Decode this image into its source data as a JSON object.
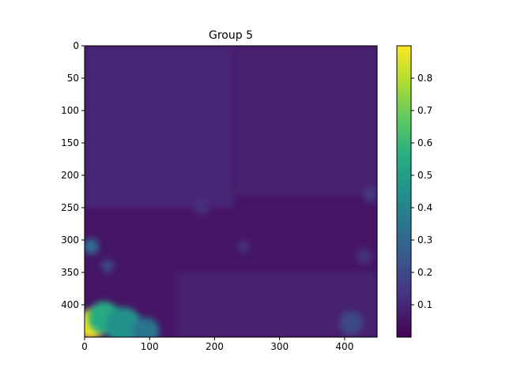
{
  "chart_data": {
    "type": "heatmap",
    "title": "Group 5",
    "xlabel": "",
    "ylabel": "",
    "xlim": [
      0,
      450
    ],
    "ylim": [
      450,
      0
    ],
    "x_ticks": [
      0,
      100,
      200,
      300,
      400
    ],
    "y_ticks": [
      0,
      50,
      100,
      150,
      200,
      250,
      300,
      350,
      400
    ],
    "colorbar": {
      "range": [
        0.0,
        0.9
      ],
      "ticks": [
        0.1,
        0.2,
        0.3,
        0.4,
        0.5,
        0.6,
        0.7,
        0.8
      ],
      "colormap": "viridis"
    },
    "base_level": 0.05,
    "regions": [
      {
        "name": "upper-left",
        "x": [
          0,
          230
        ],
        "y": [
          0,
          250
        ],
        "value": 0.1
      },
      {
        "name": "upper-right",
        "x": [
          230,
          450
        ],
        "y": [
          0,
          230
        ],
        "value": 0.08
      },
      {
        "name": "lower-middle",
        "x": [
          140,
          450
        ],
        "y": [
          350,
          450
        ],
        "value": 0.08
      }
    ],
    "hotspots": [
      {
        "x": 10,
        "y": 430,
        "r": 22,
        "value": 0.88
      },
      {
        "x": 30,
        "y": 420,
        "r": 25,
        "value": 0.55
      },
      {
        "x": 60,
        "y": 432,
        "r": 28,
        "value": 0.45
      },
      {
        "x": 95,
        "y": 440,
        "r": 20,
        "value": 0.35
      },
      {
        "x": 10,
        "y": 310,
        "r": 12,
        "value": 0.32
      },
      {
        "x": 35,
        "y": 340,
        "r": 10,
        "value": 0.2
      },
      {
        "x": 410,
        "y": 428,
        "r": 18,
        "value": 0.2
      },
      {
        "x": 440,
        "y": 230,
        "r": 12,
        "value": 0.15
      },
      {
        "x": 430,
        "y": 325,
        "r": 12,
        "value": 0.13
      },
      {
        "x": 245,
        "y": 310,
        "r": 10,
        "value": 0.12
      },
      {
        "x": 180,
        "y": 250,
        "r": 12,
        "value": 0.12
      }
    ]
  }
}
